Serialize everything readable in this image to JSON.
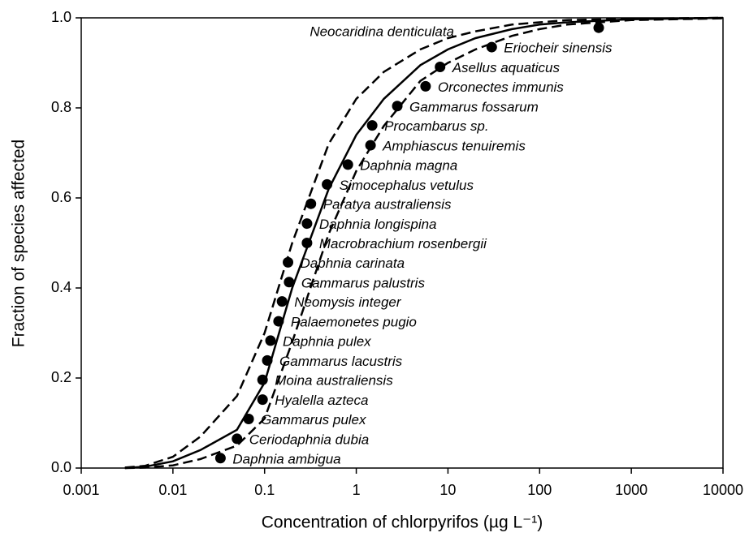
{
  "chart_data": {
    "type": "scatter",
    "xlabel": "Concentration of chlorpyrifos (µg L⁻¹)",
    "ylabel": "Fraction of species affected",
    "xscale": "log",
    "xlim": [
      0.001,
      10000
    ],
    "xticks": [
      0.001,
      0.01,
      0.1,
      1,
      10,
      100,
      1000,
      10000
    ],
    "ylim": [
      0,
      1
    ],
    "yticks": [
      {
        "value": 0,
        "label": "0.0"
      },
      {
        "value": 0.2,
        "label": "0.2"
      },
      {
        "value": 0.4,
        "label": "0.4"
      },
      {
        "value": 0.6,
        "label": "0.6"
      },
      {
        "value": 0.8,
        "label": "0.8"
      },
      {
        "value": 1,
        "label": "1.0"
      }
    ],
    "color": "#000000",
    "labels": [
      "Daphnia ambigua",
      "Ceriodaphnia dubia",
      "Gammarus pulex",
      "Hyalella azteca",
      "Moina australiensis",
      "Gammarus lacustris",
      "Daphnia pulex",
      "Palaemonetes pugio",
      "Neomysis integer",
      "Gammarus palustris",
      "Daphnia carinata",
      "Macrobrachium rosenbergii",
      "Daphnia longispina",
      "Paratya australiensis",
      "Simocephalus vetulus",
      "Daphnia magna",
      "Amphiascus tenuiremis",
      "Procambarus sp.",
      "Gammarus fossarum",
      "Orconectes immunis",
      "Asellus aquaticus",
      "Eriocheir sinensis",
      "Neocaridina denticulata"
    ],
    "x": [
      0.033,
      0.05,
      0.067,
      0.095,
      0.095,
      0.107,
      0.116,
      0.142,
      0.155,
      0.185,
      0.18,
      0.29,
      0.29,
      0.32,
      0.48,
      0.81,
      1.43,
      1.49,
      2.8,
      5.7,
      8.2,
      30,
      441
    ],
    "values": [
      0.022,
      0.065,
      0.109,
      0.152,
      0.196,
      0.239,
      0.283,
      0.326,
      0.37,
      0.413,
      0.457,
      0.5,
      0.543,
      0.587,
      0.63,
      0.674,
      0.717,
      0.761,
      0.804,
      0.848,
      0.891,
      0.935,
      0.978
    ],
    "lines": [
      {
        "style": "solid",
        "x": [
          0.003,
          0.005,
          0.01,
          0.02,
          0.05,
          0.1,
          0.2,
          0.5,
          1,
          2,
          5,
          10,
          20,
          50,
          100,
          200,
          1000,
          10000
        ],
        "values": [
          0.0,
          0.003,
          0.015,
          0.04,
          0.085,
          0.19,
          0.4,
          0.62,
          0.74,
          0.82,
          0.895,
          0.93,
          0.955,
          0.975,
          0.985,
          0.99,
          0.997,
          1.0
        ]
      },
      {
        "style": "dashed",
        "x": [
          0.003,
          0.005,
          0.01,
          0.02,
          0.05,
          0.1,
          0.2,
          0.5,
          1,
          2,
          5,
          10,
          20,
          50,
          100,
          200,
          1000,
          10000
        ],
        "values": [
          0.001,
          0.005,
          0.025,
          0.07,
          0.16,
          0.3,
          0.5,
          0.72,
          0.82,
          0.88,
          0.93,
          0.955,
          0.97,
          0.985,
          0.99,
          0.995,
          0.998,
          1.0
        ]
      },
      {
        "style": "dashed",
        "x": [
          0.003,
          0.005,
          0.01,
          0.02,
          0.05,
          0.1,
          0.2,
          0.5,
          1,
          2,
          5,
          10,
          20,
          50,
          100,
          200,
          1000,
          10000
        ],
        "values": [
          0.0,
          0.001,
          0.006,
          0.02,
          0.05,
          0.11,
          0.28,
          0.52,
          0.66,
          0.76,
          0.86,
          0.9,
          0.93,
          0.96,
          0.975,
          0.985,
          0.995,
          0.999
        ]
      }
    ]
  }
}
